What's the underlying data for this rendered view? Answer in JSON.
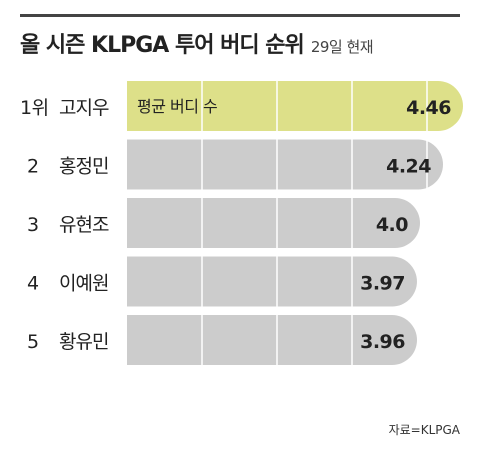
{
  "header": {
    "title": "올 시즌 KLPGA 투어 버디 순위",
    "subtitle": "29일 현재"
  },
  "chart_data": {
    "type": "bar",
    "orientation": "horizontal",
    "series_label": "평균 버디 수",
    "categories": [
      "1위 고지우",
      "2 홍정민",
      "3 유현조",
      "4 이예원",
      "5 황유민"
    ],
    "ranks": [
      "1위",
      "2",
      "3",
      "4",
      "5"
    ],
    "names": [
      "고지우",
      "홍정민",
      "유현조",
      "이예원",
      "황유민"
    ],
    "values": [
      4.46,
      4.24,
      4.0,
      3.97,
      3.96
    ],
    "value_labels": [
      "4.46",
      "4.24",
      "4.0",
      "3.97",
      "3.96"
    ],
    "highlight_color": "#dde089",
    "bar_color": "#cccccc",
    "grid": true
  },
  "footer": {
    "source": "자료=KLPGA"
  }
}
